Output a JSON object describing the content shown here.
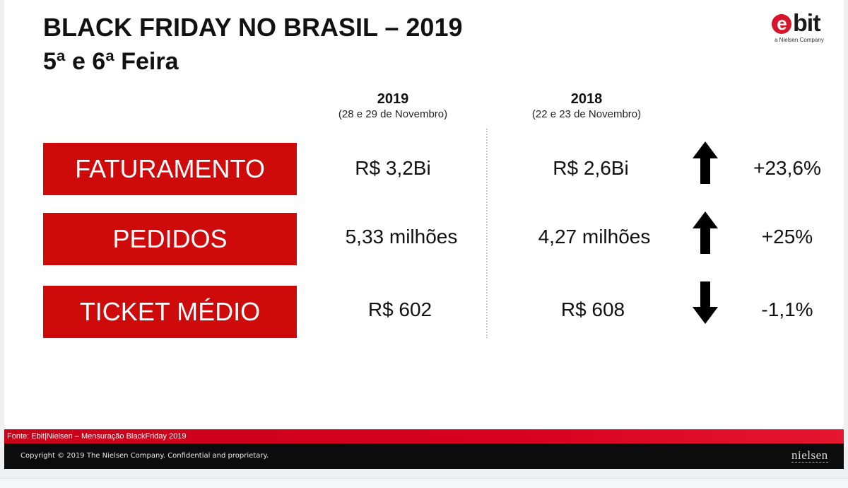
{
  "header": {
    "title": "BLACK FRIDAY NO BRASIL – 2019",
    "subtitle": "5ª e 6ª Feira"
  },
  "logo": {
    "e": "e",
    "rest": "bit",
    "tagline": "a Nielsen Company",
    "brand_color": "#d7152a"
  },
  "columns": [
    {
      "year": "2019",
      "dates": "(28 e 29 de Novembro)"
    },
    {
      "year": "2018",
      "dates": "(22 e 23 de Novembro)"
    }
  ],
  "rows": [
    {
      "metric": "FATURAMENTO",
      "v2019": "R$ 3,2Bi",
      "v2018": "R$ 2,6Bi",
      "trend_icon": "arrow-up-icon",
      "change": "+23,6%"
    },
    {
      "metric": "PEDIDOS",
      "v2019": "5,33 milhões",
      "v2018": "4,27 milhões",
      "trend_icon": "arrow-up-icon",
      "change": "+25%"
    },
    {
      "metric": "TICKET MÉDIO",
      "v2019": "R$ 602",
      "v2018": "R$ 608",
      "trend_icon": "arrow-down-icon",
      "change": "-1,1%"
    }
  ],
  "source": "Fonte: Ebit|Nielsen – Mensuração BlackFriday 2019",
  "footer": {
    "copyright": "Copyright © 2019 The Nielsen Company. Confidential and proprietary.",
    "brand": "nielsen"
  },
  "colors": {
    "accent_red": "#cf0a0a",
    "footer_black": "#0c0c0c"
  }
}
